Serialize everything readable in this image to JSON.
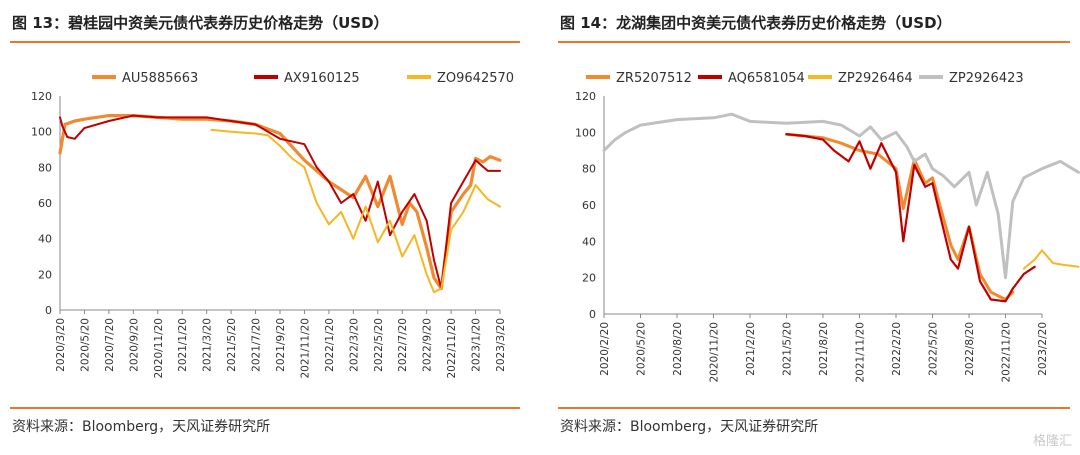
{
  "figure13": {
    "title": "图 13：碧桂园中资美元债代表券历史价格走势（USD）",
    "source": "资料来源：Bloomberg，天风证券研究所"
  },
  "figure14": {
    "title": "图 14：龙湖集团中资美元债代表券历史价格走势（USD）",
    "source": "资料来源：Bloomberg，天风证券研究所"
  },
  "watermark": "格隆汇",
  "chart_data": [
    {
      "type": "line",
      "title": "",
      "ylim": [
        0,
        120
      ],
      "y_ticks": [
        0,
        20,
        40,
        60,
        80,
        100,
        120
      ],
      "x_ticks": [
        "2020/3/20",
        "2020/5/20",
        "2020/7/20",
        "2020/9/20",
        "2020/11/20",
        "2021/1/20",
        "2021/3/20",
        "2021/5/20",
        "2021/7/20",
        "2021/9/20",
        "2021/11/20",
        "2022/1/20",
        "2022/3/20",
        "2022/5/20",
        "2022/7/20",
        "2022/9/20",
        "2022/11/20",
        "2023/1/20",
        "2023/3/20"
      ],
      "legend_position": "top-left",
      "grid": false,
      "series": [
        {
          "name": "AU5885663",
          "color": "#f08a30",
          "width": 3.2,
          "x": [
            0,
            0.2,
            0.6,
            1,
            2,
            3,
            4,
            5,
            6,
            7,
            8,
            9,
            10,
            11,
            12,
            12.5,
            13,
            13.5,
            14,
            14.3,
            14.6,
            15,
            15.3,
            15.6,
            16,
            16.5,
            16.8,
            17,
            17.3,
            17.6,
            18
          ],
          "y": [
            88,
            104,
            106,
            107,
            109,
            109,
            108,
            107,
            107,
            106,
            104,
            99,
            84,
            72,
            63,
            75,
            58,
            75,
            48,
            60,
            55,
            35,
            18,
            12,
            55,
            65,
            70,
            85,
            83,
            86,
            84
          ]
        },
        {
          "name": "AX9160125",
          "color": "#c00000",
          "width": 2,
          "x": [
            0,
            0.1,
            0.3,
            0.6,
            1,
            2,
            3,
            4,
            5,
            6,
            7,
            8,
            9,
            10,
            10.5,
            11,
            11.5,
            12,
            12.5,
            13,
            13.5,
            14,
            14.5,
            15,
            15.3,
            15.6,
            16,
            16.5,
            17,
            17.5,
            18
          ],
          "y": [
            108,
            103,
            97,
            96,
            102,
            106,
            109,
            108,
            108,
            108,
            106,
            104,
            96,
            93,
            80,
            72,
            60,
            65,
            50,
            72,
            42,
            55,
            65,
            50,
            28,
            12,
            60,
            72,
            84,
            78,
            78
          ]
        },
        {
          "name": "ZO9642570",
          "color": "#f5b722",
          "width": 2,
          "x": [
            6.2,
            7,
            8,
            8.5,
            9,
            9.5,
            10,
            10.5,
            11,
            11.5,
            12,
            12.5,
            13,
            13.5,
            14,
            14.5,
            15,
            15.3,
            15.6,
            16,
            16.5,
            17,
            17.5,
            18
          ],
          "y": [
            101,
            100,
            99,
            98,
            92,
            85,
            80,
            60,
            48,
            55,
            40,
            58,
            38,
            50,
            30,
            42,
            20,
            10,
            12,
            45,
            55,
            70,
            62,
            58
          ]
        }
      ]
    },
    {
      "type": "line",
      "title": "",
      "ylim": [
        0,
        120
      ],
      "y_ticks": [
        0,
        20,
        40,
        60,
        80,
        100,
        120
      ],
      "x_ticks": [
        "2020/2/20",
        "2020/5/20",
        "2020/8/20",
        "2020/11/20",
        "2021/2/20",
        "2021/5/20",
        "2021/8/20",
        "2021/11/20",
        "2022/2/20",
        "2022/5/20",
        "2022/8/20",
        "2022/11/20",
        "2023/2/20"
      ],
      "legend_position": "top",
      "grid": false,
      "series": [
        {
          "name": "ZR5207512",
          "color": "#f08a30",
          "width": 3,
          "x": [
            5,
            6,
            6.5,
            7,
            7.5,
            8,
            8.2,
            8.5,
            8.8,
            9,
            9.2,
            9.5,
            9.7,
            10,
            10.3,
            10.6,
            11,
            11.2
          ],
          "y": [
            99,
            97,
            94,
            90,
            88,
            80,
            58,
            85,
            72,
            75,
            60,
            38,
            30,
            48,
            22,
            12,
            8,
            12
          ]
        },
        {
          "name": "AQ6581054",
          "color": "#c00000",
          "width": 2.2,
          "x": [
            5,
            5.5,
            6,
            6.3,
            6.7,
            7,
            7.3,
            7.6,
            8,
            8.2,
            8.5,
            8.8,
            9,
            9.2,
            9.5,
            9.7,
            10,
            10.3,
            10.6,
            11,
            11.2,
            11.5,
            11.8
          ],
          "y": [
            99,
            98,
            96,
            90,
            84,
            95,
            80,
            94,
            78,
            40,
            82,
            70,
            72,
            55,
            30,
            25,
            48,
            18,
            8,
            7,
            14,
            22,
            26
          ]
        },
        {
          "name": "ZP2926464",
          "color": "#f5b722",
          "width": 2,
          "x": [
            11.5,
            11.8,
            12,
            12.3,
            12.6,
            13
          ],
          "y": [
            25,
            30,
            35,
            28,
            27,
            26
          ]
        },
        {
          "name": "ZP2926423",
          "color": "#c0c0c0",
          "width": 3,
          "x": [
            0,
            0.3,
            0.6,
            1,
            2,
            3,
            3.5,
            4,
            5,
            6,
            6.5,
            7,
            7.3,
            7.6,
            8,
            8.3,
            8.5,
            8.8,
            9,
            9.3,
            9.6,
            10,
            10.2,
            10.5,
            10.8,
            11,
            11.2,
            11.5,
            12,
            12.5,
            13
          ],
          "y": [
            90,
            96,
            100,
            104,
            107,
            108,
            110,
            106,
            105,
            106,
            104,
            98,
            103,
            96,
            100,
            92,
            84,
            88,
            80,
            76,
            70,
            78,
            60,
            78,
            55,
            20,
            62,
            75,
            80,
            84,
            78
          ]
        }
      ]
    }
  ]
}
